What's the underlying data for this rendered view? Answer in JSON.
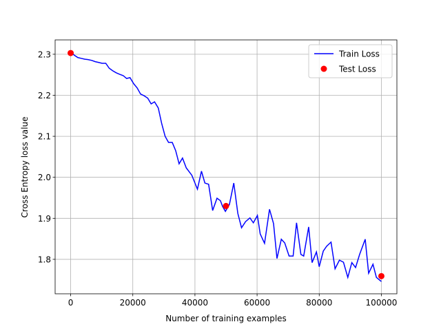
{
  "chart_data": {
    "type": "line+scatter",
    "xlabel": "Number of training examples",
    "ylabel": "Cross Entropy loss value",
    "xlim": [
      -5000,
      105000
    ],
    "ylim": [
      1.716,
      2.335
    ],
    "xticks": [
      0,
      20000,
      40000,
      60000,
      80000,
      100000
    ],
    "yticks": [
      1.8,
      1.9,
      {
        "value": 2,
        "label": "2.0"
      },
      2.1,
      2.2,
      2.3
    ],
    "grid": true,
    "legend": "upper right",
    "series": [
      {
        "name": "Train Loss",
        "type": "line",
        "color": "#0000ff",
        "x": [
          0,
          1100,
          2300,
          3400,
          4500,
          5600,
          6800,
          7900,
          9000,
          10100,
          11300,
          12400,
          13500,
          14600,
          15800,
          16900,
          18000,
          19100,
          20300,
          21400,
          22500,
          23600,
          24800,
          25900,
          27000,
          28200,
          29300,
          30400,
          31500,
          32700,
          33800,
          34900,
          36000,
          37200,
          39000,
          40800,
          42100,
          43200,
          44400,
          45700,
          47100,
          48200,
          48900,
          49800,
          51100,
          52500,
          53800,
          55000,
          56300,
          57700,
          58800,
          60100,
          61000,
          62400,
          64000,
          65300,
          66400,
          67800,
          68900,
          70300,
          71600,
          72700,
          74100,
          75000,
          76600,
          77700,
          79100,
          80000,
          81300,
          82400,
          83800,
          85100,
          86500,
          87800,
          89200,
          90500,
          91700,
          93000,
          94800,
          95900,
          97300,
          98400,
          100000
        ],
        "values": [
          2.307,
          2.298,
          2.292,
          2.29,
          2.288,
          2.287,
          2.285,
          2.282,
          2.28,
          2.278,
          2.278,
          2.266,
          2.26,
          2.255,
          2.251,
          2.248,
          2.241,
          2.243,
          2.228,
          2.218,
          2.203,
          2.199,
          2.193,
          2.179,
          2.184,
          2.169,
          2.131,
          2.1,
          2.085,
          2.085,
          2.065,
          2.033,
          2.047,
          2.023,
          2.005,
          1.971,
          2.015,
          1.986,
          1.983,
          1.919,
          1.949,
          1.943,
          1.929,
          1.917,
          1.934,
          1.986,
          1.912,
          1.877,
          1.892,
          1.901,
          1.889,
          1.907,
          1.862,
          1.839,
          1.922,
          1.887,
          1.802,
          1.849,
          1.84,
          1.808,
          1.808,
          1.889,
          1.812,
          1.808,
          1.879,
          1.792,
          1.818,
          1.782,
          1.82,
          1.832,
          1.842,
          1.777,
          1.798,
          1.793,
          1.756,
          1.792,
          1.78,
          1.812,
          1.849,
          1.766,
          1.788,
          1.756,
          1.746
        ]
      },
      {
        "name": "Test Loss",
        "type": "scatter",
        "color": "#ff0000",
        "x": [
          0,
          50000,
          100000
        ],
        "values": [
          2.303,
          1.93,
          1.759
        ]
      }
    ]
  }
}
